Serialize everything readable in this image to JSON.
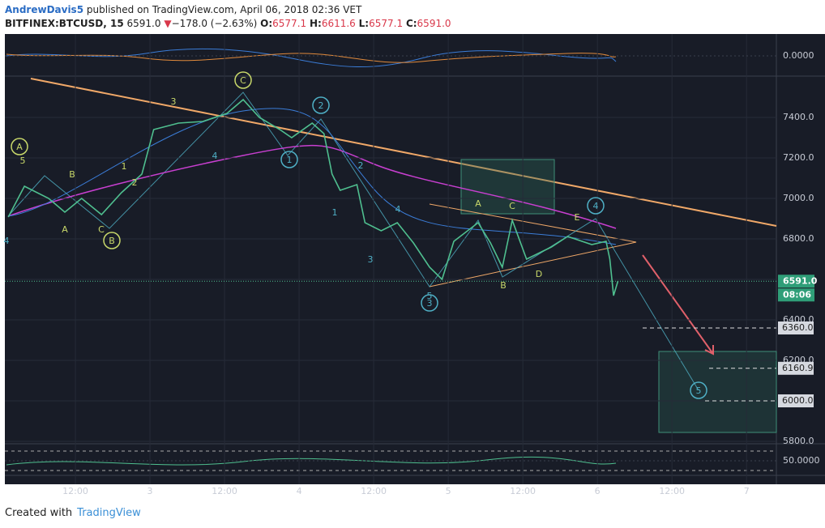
{
  "header": {
    "author": "AndrewDavis5",
    "published": "published on TradingView.com, April 06, 2018 02:36 VET",
    "symbol": "BITFINEX:BTCUSD, 15",
    "last": "6591.0",
    "arrow": "▼",
    "change": "−178.0 (−2.63%)",
    "open_label": "O:",
    "open": "6577.1",
    "high_label": "H:",
    "high": "6611.6",
    "low_label": "L:",
    "low": "6577.1",
    "close_label": "C:",
    "close": "6591.0"
  },
  "chart_data": {
    "type": "line",
    "x": [
      1.2,
      3.8,
      7.7,
      10.3,
      13,
      16.2,
      19.4,
      22.7,
      24.6,
      28.6,
      32.5,
      36.4,
      39,
      41.6,
      44.9,
      46.8,
      50.1,
      52,
      53.3,
      54.6,
      57.3,
      58.6,
      61.2,
      63.8,
      66.4,
      69,
      71,
      72.9,
      76.8,
      78.8,
      80.7,
      82.3,
      84.6,
      88.6,
      91.2,
      95.1,
      97.4,
      98,
      98.6,
      99.3
    ],
    "values": [
      6908,
      7060,
      7000,
      6932,
      7000,
      6920,
      7028,
      7120,
      7340,
      7372,
      7380,
      7420,
      7488,
      7400,
      7340,
      7300,
      7372,
      7320,
      7120,
      7040,
      7068,
      6880,
      6840,
      6880,
      6780,
      6660,
      6600,
      6788,
      6880,
      6780,
      6660,
      6892,
      6700,
      6760,
      6812,
      6772,
      6788,
      6700,
      6520,
      6591
    ],
    "color": "#4fbf8f",
    "xlim": [
      0.65,
      124.8
    ],
    "xticks": [
      {
        "value": 12,
        "label": "12:00"
      },
      {
        "value": 24,
        "label": "3"
      },
      {
        "value": 36,
        "label": "12:00"
      },
      {
        "value": 48,
        "label": "4"
      },
      {
        "value": 60,
        "label": "12:00"
      },
      {
        "value": 72,
        "label": "5"
      },
      {
        "value": 84,
        "label": "12:00"
      },
      {
        "value": 96,
        "label": "6"
      },
      {
        "value": 108,
        "label": "12:00"
      },
      {
        "value": 120,
        "label": "7"
      }
    ],
    "ylim": [
      5800,
      7600
    ],
    "yticks": [
      {
        "value": 5800,
        "label": "5800.0"
      },
      {
        "value": 6000,
        "label": "6000.0"
      },
      {
        "value": 6200,
        "label": "6200.0"
      },
      {
        "value": 6400,
        "label": "6400.0"
      },
      {
        "value": 6600,
        "label": "6600.0"
      },
      {
        "value": 6800,
        "label": "6800.0"
      },
      {
        "value": 7000,
        "label": "7000.0"
      },
      {
        "value": 7200,
        "label": "7200.0"
      },
      {
        "value": 7400,
        "label": "7400.0"
      }
    ],
    "grid": true,
    "last_price": {
      "value": 6591,
      "label": "6591.0"
    },
    "countdown": "08:06",
    "level_labels": [
      {
        "value": 6360,
        "label": "6360.0"
      },
      {
        "value": 6160.9,
        "label": "6160.9"
      },
      {
        "value": 6000,
        "label": "6000.0"
      }
    ],
    "annotations": [
      "A",
      "5",
      "B",
      "A",
      "C",
      "B",
      "1",
      "2",
      "3",
      "4",
      "C",
      "1",
      "2",
      "1",
      "2",
      "3",
      "4",
      "5",
      "3",
      "A",
      "C",
      "B",
      "D",
      "E",
      "4",
      "5",
      "4"
    ],
    "top_pane_ticks": [
      {
        "value": 0,
        "label": "0.0000"
      }
    ],
    "bottom_pane_ticks": [
      {
        "value": 50,
        "label": "50.0000"
      }
    ]
  },
  "footer": {
    "created": "Created with",
    "brand": "TradingView"
  }
}
